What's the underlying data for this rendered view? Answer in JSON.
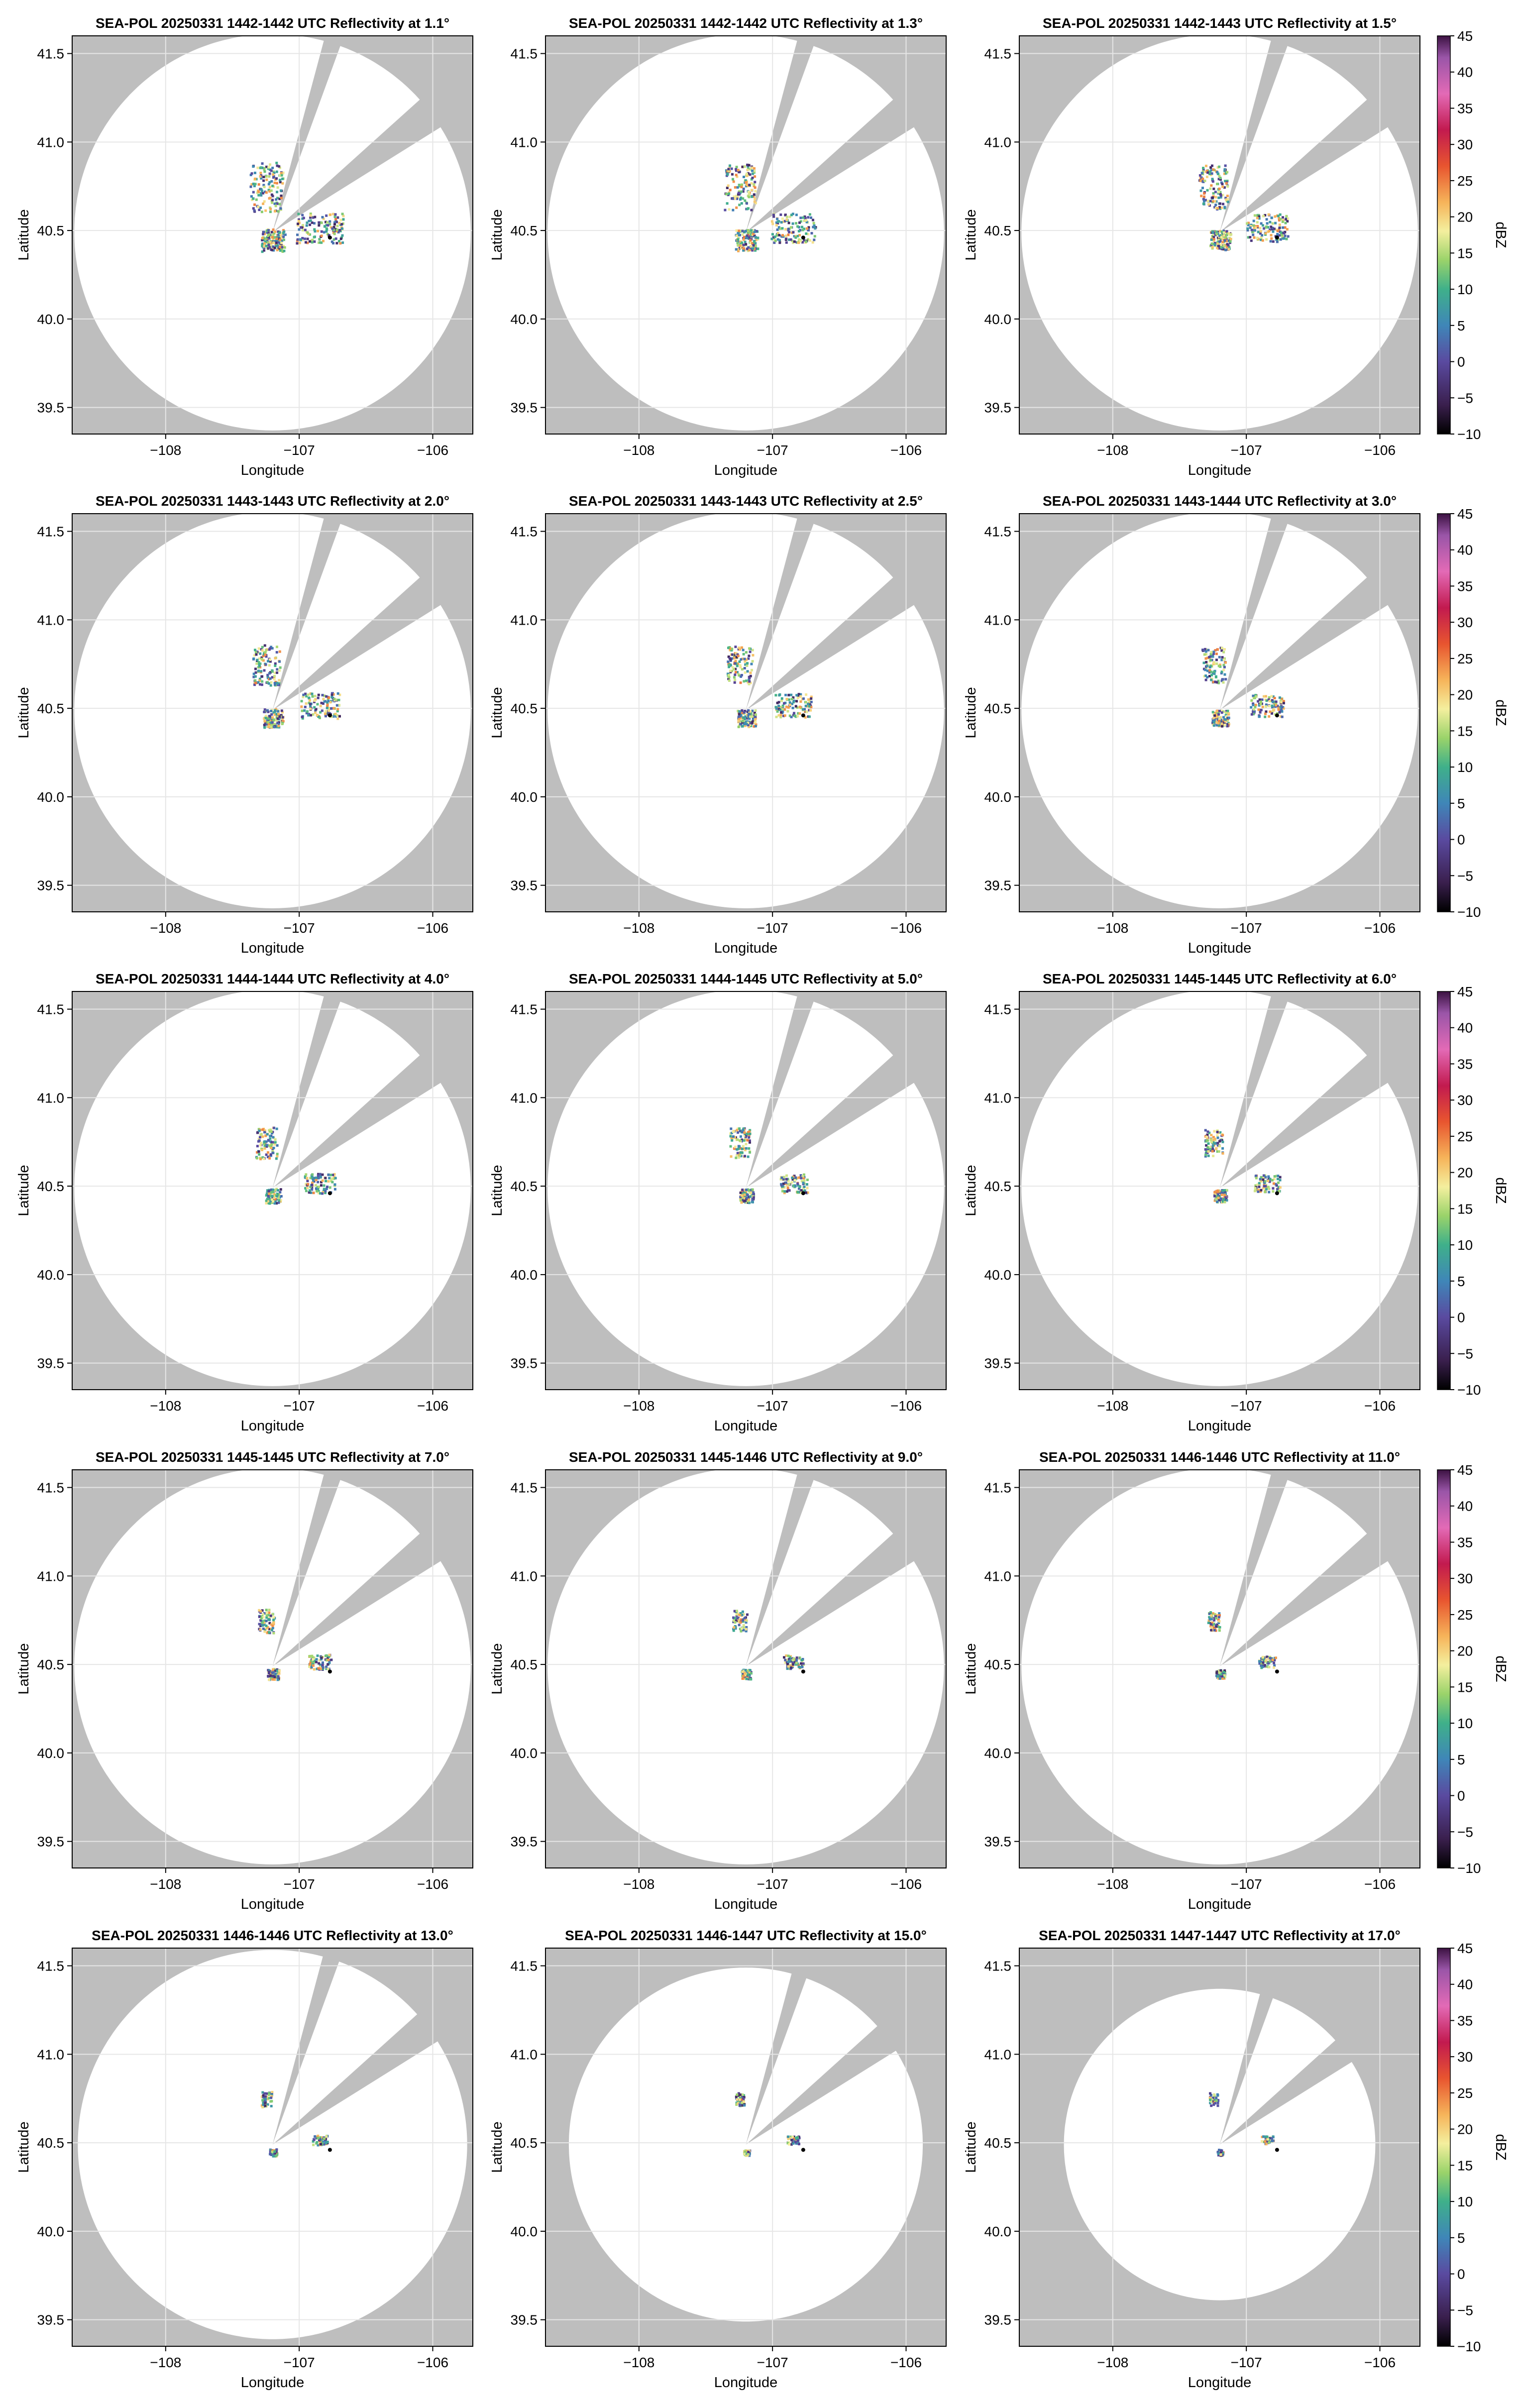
{
  "figure": {
    "background": "#ffffff",
    "mask_color": "#bebebe",
    "coverage_color": "#ffffff",
    "grid_color": "#e6e6e6",
    "site_marker_color": "#000000",
    "colorbar_label": "dBZ",
    "colorbar_ticks": [
      45,
      40,
      35,
      30,
      25,
      20,
      15,
      10,
      5,
      0,
      -5,
      -10
    ],
    "colorbar_range": [
      -10,
      45
    ],
    "colormap_stops": [
      {
        "value": -10,
        "color": "#000000"
      },
      {
        "value": -6,
        "color": "#3a1f4d"
      },
      {
        "value": 0,
        "color": "#5a4aa0"
      },
      {
        "value": 5,
        "color": "#3f86b8"
      },
      {
        "value": 10,
        "color": "#3fb08a"
      },
      {
        "value": 14,
        "color": "#9ad36a"
      },
      {
        "value": 18,
        "color": "#f4ef9e"
      },
      {
        "value": 22,
        "color": "#f6b45a"
      },
      {
        "value": 27,
        "color": "#e8552f"
      },
      {
        "value": 32,
        "color": "#c21a4f"
      },
      {
        "value": 37,
        "color": "#e36ab6"
      },
      {
        "value": 42,
        "color": "#9a55a8"
      },
      {
        "value": 45,
        "color": "#3c1242"
      }
    ]
  },
  "chart_data": [
    {
      "type": "heatmap",
      "title": "SEA-POL 20250331 1442-1442 UTC Reflectivity at 1.1°",
      "xlabel": "Longitude",
      "ylabel": "Latitude",
      "xlim": [
        -108.7,
        -105.7
      ],
      "ylim": [
        39.35,
        41.6
      ],
      "xticks": [
        "−108",
        "−107",
        "−106"
      ],
      "yticks": [
        "39.5",
        "40.0",
        "40.5",
        "41.0",
        "41.5"
      ],
      "radar": {
        "lon": -107.2,
        "lat": 40.49
      },
      "range_lat": 1.12,
      "blocked_sectors": [
        [
          15,
          20
        ],
        [
          48,
          58
        ]
      ],
      "site_marker": {
        "lon": -106.77,
        "lat": 40.46
      }
    },
    {
      "type": "heatmap",
      "title": "SEA-POL 20250331 1442-1442 UTC Reflectivity at 1.3°",
      "xlabel": "Longitude",
      "ylabel": "Latitude",
      "xlim": [
        -108.7,
        -105.7
      ],
      "ylim": [
        39.35,
        41.6
      ],
      "xticks": [
        "−108",
        "−107",
        "−106"
      ],
      "yticks": [
        "39.5",
        "40.0",
        "40.5",
        "41.0",
        "41.5"
      ],
      "radar": {
        "lon": -107.2,
        "lat": 40.49
      },
      "range_lat": 1.12,
      "blocked_sectors": [
        [
          15,
          20
        ],
        [
          48,
          58
        ]
      ],
      "site_marker": {
        "lon": -106.77,
        "lat": 40.46
      }
    },
    {
      "type": "heatmap",
      "title": "SEA-POL 20250331 1442-1443 UTC Reflectivity at 1.5°",
      "xlabel": "Longitude",
      "ylabel": "Latitude",
      "xlim": [
        -108.7,
        -105.7
      ],
      "ylim": [
        39.35,
        41.6
      ],
      "xticks": [
        "−108",
        "−107",
        "−106"
      ],
      "yticks": [
        "39.5",
        "40.0",
        "40.5",
        "41.0",
        "41.5"
      ],
      "radar": {
        "lon": -107.2,
        "lat": 40.49
      },
      "range_lat": 1.12,
      "blocked_sectors": [
        [
          15,
          20
        ],
        [
          48,
          58
        ]
      ],
      "site_marker": {
        "lon": -106.77,
        "lat": 40.46
      }
    },
    {
      "type": "heatmap",
      "title": "SEA-POL 20250331 1443-1443 UTC Reflectivity at 2.0°",
      "xlabel": "Longitude",
      "ylabel": "Latitude",
      "xlim": [
        -108.7,
        -105.7
      ],
      "ylim": [
        39.35,
        41.6
      ],
      "xticks": [
        "−108",
        "−107",
        "−106"
      ],
      "yticks": [
        "39.5",
        "40.0",
        "40.5",
        "41.0",
        "41.5"
      ],
      "radar": {
        "lon": -107.2,
        "lat": 40.49
      },
      "range_lat": 1.12,
      "blocked_sectors": [
        [
          15,
          20
        ],
        [
          48,
          58
        ]
      ],
      "site_marker": {
        "lon": -106.77,
        "lat": 40.46
      }
    },
    {
      "type": "heatmap",
      "title": "SEA-POL 20250331 1443-1443 UTC Reflectivity at 2.5°",
      "xlabel": "Longitude",
      "ylabel": "Latitude",
      "xlim": [
        -108.7,
        -105.7
      ],
      "ylim": [
        39.35,
        41.6
      ],
      "xticks": [
        "−108",
        "−107",
        "−106"
      ],
      "yticks": [
        "39.5",
        "40.0",
        "40.5",
        "41.0",
        "41.5"
      ],
      "radar": {
        "lon": -107.2,
        "lat": 40.49
      },
      "range_lat": 1.12,
      "blocked_sectors": [
        [
          15,
          20
        ],
        [
          48,
          58
        ]
      ],
      "site_marker": {
        "lon": -106.77,
        "lat": 40.46
      }
    },
    {
      "type": "heatmap",
      "title": "SEA-POL 20250331 1443-1444 UTC Reflectivity at 3.0°",
      "xlabel": "Longitude",
      "ylabel": "Latitude",
      "xlim": [
        -108.7,
        -105.7
      ],
      "ylim": [
        39.35,
        41.6
      ],
      "xticks": [
        "−108",
        "−107",
        "−106"
      ],
      "yticks": [
        "39.5",
        "40.0",
        "40.5",
        "41.0",
        "41.5"
      ],
      "radar": {
        "lon": -107.2,
        "lat": 40.49
      },
      "range_lat": 1.12,
      "blocked_sectors": [
        [
          15,
          20
        ],
        [
          48,
          58
        ]
      ],
      "site_marker": {
        "lon": -106.77,
        "lat": 40.46
      }
    },
    {
      "type": "heatmap",
      "title": "SEA-POL 20250331 1444-1444 UTC Reflectivity at 4.0°",
      "xlabel": "Longitude",
      "ylabel": "Latitude",
      "xlim": [
        -108.7,
        -105.7
      ],
      "ylim": [
        39.35,
        41.6
      ],
      "xticks": [
        "−108",
        "−107",
        "−106"
      ],
      "yticks": [
        "39.5",
        "40.0",
        "40.5",
        "41.0",
        "41.5"
      ],
      "radar": {
        "lon": -107.2,
        "lat": 40.49
      },
      "range_lat": 1.12,
      "blocked_sectors": [
        [
          15,
          20
        ],
        [
          48,
          58
        ]
      ],
      "site_marker": {
        "lon": -106.77,
        "lat": 40.46
      }
    },
    {
      "type": "heatmap",
      "title": "SEA-POL 20250331 1444-1445 UTC Reflectivity at 5.0°",
      "xlabel": "Longitude",
      "ylabel": "Latitude",
      "xlim": [
        -108.7,
        -105.7
      ],
      "ylim": [
        39.35,
        41.6
      ],
      "xticks": [
        "−108",
        "−107",
        "−106"
      ],
      "yticks": [
        "39.5",
        "40.0",
        "40.5",
        "41.0",
        "41.5"
      ],
      "radar": {
        "lon": -107.2,
        "lat": 40.49
      },
      "range_lat": 1.12,
      "blocked_sectors": [
        [
          15,
          20
        ],
        [
          48,
          58
        ]
      ],
      "site_marker": {
        "lon": -106.77,
        "lat": 40.46
      }
    },
    {
      "type": "heatmap",
      "title": "SEA-POL 20250331 1445-1445 UTC Reflectivity at 6.0°",
      "xlabel": "Longitude",
      "ylabel": "Latitude",
      "xlim": [
        -108.7,
        -105.7
      ],
      "ylim": [
        39.35,
        41.6
      ],
      "xticks": [
        "−108",
        "−107",
        "−106"
      ],
      "yticks": [
        "39.5",
        "40.0",
        "40.5",
        "41.0",
        "41.5"
      ],
      "radar": {
        "lon": -107.2,
        "lat": 40.49
      },
      "range_lat": 1.12,
      "blocked_sectors": [
        [
          15,
          20
        ],
        [
          48,
          58
        ]
      ],
      "site_marker": {
        "lon": -106.77,
        "lat": 40.46
      }
    },
    {
      "type": "heatmap",
      "title": "SEA-POL 20250331 1445-1445 UTC Reflectivity at 7.0°",
      "xlabel": "Longitude",
      "ylabel": "Latitude",
      "xlim": [
        -108.7,
        -105.7
      ],
      "ylim": [
        39.35,
        41.6
      ],
      "xticks": [
        "−108",
        "−107",
        "−106"
      ],
      "yticks": [
        "39.5",
        "40.0",
        "40.5",
        "41.0",
        "41.5"
      ],
      "radar": {
        "lon": -107.2,
        "lat": 40.49
      },
      "range_lat": 1.12,
      "blocked_sectors": [
        [
          15,
          20
        ],
        [
          48,
          58
        ]
      ],
      "site_marker": {
        "lon": -106.77,
        "lat": 40.46
      }
    },
    {
      "type": "heatmap",
      "title": "SEA-POL 20250331 1445-1446 UTC Reflectivity at 9.0°",
      "xlabel": "Longitude",
      "ylabel": "Latitude",
      "xlim": [
        -108.7,
        -105.7
      ],
      "ylim": [
        39.35,
        41.6
      ],
      "xticks": [
        "−108",
        "−107",
        "−106"
      ],
      "yticks": [
        "39.5",
        "40.0",
        "40.5",
        "41.0",
        "41.5"
      ],
      "radar": {
        "lon": -107.2,
        "lat": 40.49
      },
      "range_lat": 1.12,
      "blocked_sectors": [
        [
          15,
          20
        ],
        [
          48,
          58
        ]
      ],
      "site_marker": {
        "lon": -106.77,
        "lat": 40.46
      }
    },
    {
      "type": "heatmap",
      "title": "SEA-POL 20250331 1446-1446 UTC Reflectivity at 11.0°",
      "xlabel": "Longitude",
      "ylabel": "Latitude",
      "xlim": [
        -108.7,
        -105.7
      ],
      "ylim": [
        39.35,
        41.6
      ],
      "xticks": [
        "−108",
        "−107",
        "−106"
      ],
      "yticks": [
        "39.5",
        "40.0",
        "40.5",
        "41.0",
        "41.5"
      ],
      "radar": {
        "lon": -107.2,
        "lat": 40.49
      },
      "range_lat": 1.12,
      "blocked_sectors": [
        [
          15,
          20
        ],
        [
          48,
          58
        ]
      ],
      "site_marker": {
        "lon": -106.77,
        "lat": 40.46
      }
    },
    {
      "type": "heatmap",
      "title": "SEA-POL 20250331 1446-1446 UTC Reflectivity at 13.0°",
      "xlabel": "Longitude",
      "ylabel": "Latitude",
      "xlim": [
        -108.7,
        -105.7
      ],
      "ylim": [
        39.35,
        41.6
      ],
      "xticks": [
        "−108",
        "−107",
        "−106"
      ],
      "yticks": [
        "39.5",
        "40.0",
        "40.5",
        "41.0",
        "41.5"
      ],
      "radar": {
        "lon": -107.2,
        "lat": 40.49
      },
      "range_lat": 1.1,
      "blocked_sectors": [
        [
          15,
          20
        ],
        [
          48,
          58
        ]
      ],
      "site_marker": {
        "lon": -106.77,
        "lat": 40.46
      }
    },
    {
      "type": "heatmap",
      "title": "SEA-POL 20250331 1446-1447 UTC Reflectivity at 15.0°",
      "xlabel": "Longitude",
      "ylabel": "Latitude",
      "xlim": [
        -108.7,
        -105.7
      ],
      "ylim": [
        39.35,
        41.6
      ],
      "xticks": [
        "−108",
        "−107",
        "−106"
      ],
      "yticks": [
        "39.5",
        "40.0",
        "40.5",
        "41.0",
        "41.5"
      ],
      "radar": {
        "lon": -107.2,
        "lat": 40.49
      },
      "range_lat": 1.0,
      "blocked_sectors": [
        [
          15,
          20
        ],
        [
          48,
          58
        ]
      ],
      "site_marker": {
        "lon": -106.77,
        "lat": 40.46
      }
    },
    {
      "type": "heatmap",
      "title": "SEA-POL 20250331 1447-1447 UTC Reflectivity at 17.0°",
      "xlabel": "Longitude",
      "ylabel": "Latitude",
      "xlim": [
        -108.7,
        -105.7
      ],
      "ylim": [
        39.35,
        41.6
      ],
      "xticks": [
        "−108",
        "−107",
        "−106"
      ],
      "yticks": [
        "39.5",
        "40.0",
        "40.5",
        "41.0",
        "41.5"
      ],
      "radar": {
        "lon": -107.2,
        "lat": 40.49
      },
      "range_lat": 0.88,
      "blocked_sectors": [
        [
          15,
          20
        ],
        [
          48,
          58
        ]
      ],
      "site_marker": {
        "lon": -106.77,
        "lat": 40.46
      }
    }
  ]
}
